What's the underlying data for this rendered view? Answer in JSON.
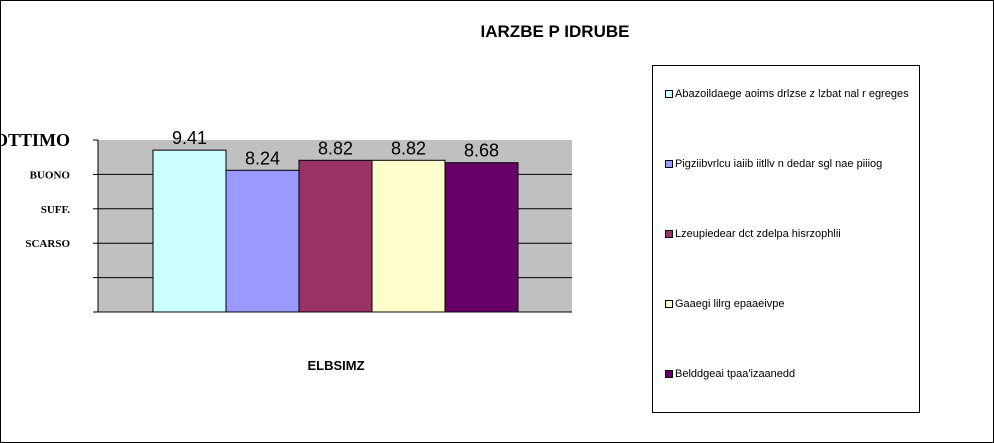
{
  "chart_data": {
    "type": "bar",
    "title": "IARZBE P IDRUBE",
    "xlabel": "ELBSIMZ",
    "ylabel": "",
    "ylim": [
      0,
      10
    ],
    "y_tick_labels": [
      "OTTIMO",
      "BUONO",
      "SUFF.",
      "SCARSO"
    ],
    "grid": true,
    "legend_position": "right",
    "series": [
      {
        "name": "Abazoildaege aoims drlzse z lzbat nal r egreges",
        "value": 9.41,
        "label": "9.41",
        "color": "#CCFFFF"
      },
      {
        "name": "Pigziibvrlcu iaiib iitllv n dedar sgl nae piiiog",
        "value": 8.24,
        "label": "8.24",
        "color": "#9999FF"
      },
      {
        "name": "Lzeupiedear dct zdelpa hisrzophlii",
        "value": 8.82,
        "label": "8.82",
        "color": "#993366"
      },
      {
        "name": "Gaaegi lilrg epaaeivpe",
        "value": 8.82,
        "label": "8.82",
        "color": "#FFFFCC"
      },
      {
        "name": "Belddgeai tpaa'izaanedd",
        "value": 8.68,
        "label": "8.68",
        "color": "#660066"
      }
    ]
  }
}
